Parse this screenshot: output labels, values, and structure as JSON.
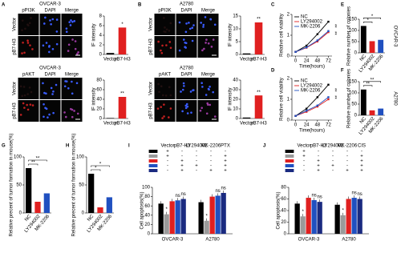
{
  "panel_letters": [
    "A",
    "B",
    "C",
    "D",
    "E",
    "F",
    "G",
    "H",
    "I",
    "J"
  ],
  "image_panels": [
    {
      "title": "OVCAR-3",
      "columns": [
        "pPI3K",
        "DAPI",
        "Merge"
      ],
      "rows": [
        "Vector",
        "pB7-H3"
      ]
    },
    {
      "title": "OVCAR-3",
      "columns": [
        "pAKT",
        "DAPI",
        "Merge"
      ],
      "rows": [
        "Vector",
        "pB7-H3"
      ]
    },
    {
      "title": "A2780",
      "columns": [
        "pPI3K",
        "DAPI",
        "Merge"
      ],
      "rows": [
        "Vector",
        "pB7-H3"
      ]
    },
    {
      "title": "A2780",
      "columns": [
        "pAKT",
        "DAPI",
        "Merge"
      ],
      "rows": [
        "Vector",
        "pB7-H3"
      ]
    }
  ],
  "chart_data": [
    {
      "type": "bar",
      "ylabel": "IF intensity",
      "categories": [
        "Vector",
        "pB7-H3"
      ],
      "values": [
        0.3,
        5.6
      ],
      "colors": [
        "#000000",
        "#e02020"
      ],
      "ylim": [
        0,
        8
      ],
      "yticks": [
        0,
        2,
        4,
        6,
        8
      ],
      "annotations": [
        "*"
      ]
    },
    {
      "type": "bar",
      "ylabel": "IF intensity",
      "categories": [
        "Vector",
        "pB7-H3"
      ],
      "values": [
        1,
        45
      ],
      "colors": [
        "#000000",
        "#e02020"
      ],
      "ylim": [
        0,
        80
      ],
      "yticks": [
        0,
        20,
        40,
        60,
        80
      ],
      "annotations": [
        "**"
      ]
    },
    {
      "type": "bar",
      "ylabel": "IF intensity",
      "categories": [
        "Vector",
        "pB7-H3"
      ],
      "values": [
        0.4,
        12.5
      ],
      "colors": [
        "#000000",
        "#e02020"
      ],
      "ylim": [
        0,
        15
      ],
      "yticks": [
        0,
        5,
        10,
        15
      ],
      "annotations": [
        "**"
      ]
    },
    {
      "type": "bar",
      "ylabel": "IF intensity",
      "categories": [
        "Vector",
        "pB7-H3"
      ],
      "values": [
        1,
        24
      ],
      "colors": [
        "#000000",
        "#e02020"
      ],
      "ylim": [
        0,
        40
      ],
      "yticks": [
        0,
        10,
        20,
        30,
        40
      ],
      "annotations": [
        "**"
      ]
    },
    {
      "type": "line",
      "ylabel": "Relative cell viability",
      "xlabel": "Time(hours)",
      "x": [
        0,
        24,
        48,
        72
      ],
      "xlim": [
        -8,
        80
      ],
      "xticks": [
        0,
        24,
        48,
        72
      ],
      "ylim": [
        0,
        2
      ],
      "yticks": [
        0,
        1,
        2
      ],
      "annotations": [
        "**",
        "**"
      ],
      "series": [
        {
          "name": "NC",
          "color": "#000000",
          "values": [
            0.2,
            0.5,
            1.05,
            1.65
          ]
        },
        {
          "name": "LY294002",
          "color": "#e02020",
          "values": [
            0.2,
            0.4,
            0.7,
            1.15
          ]
        },
        {
          "name": "MK-2206",
          "color": "#2050c0",
          "values": [
            0.2,
            0.42,
            0.75,
            1.2
          ]
        }
      ]
    },
    {
      "type": "line",
      "ylabel": "Relative cell viability",
      "xlabel": "Time(hours)",
      "x": [
        0,
        24,
        48,
        72
      ],
      "xlim": [
        -8,
        80
      ],
      "xticks": [
        0,
        24,
        48,
        72
      ],
      "ylim": [
        0,
        2
      ],
      "yticks": [
        0,
        1,
        2
      ],
      "annotations": [
        "**",
        "**"
      ],
      "series": [
        {
          "name": "NC",
          "color": "#000000",
          "values": [
            0.2,
            0.55,
            1.1,
            1.7
          ]
        },
        {
          "name": "LY294002",
          "color": "#e02020",
          "values": [
            0.2,
            0.4,
            0.65,
            1.0
          ]
        },
        {
          "name": "MK-2206",
          "color": "#2050c0",
          "values": [
            0.2,
            0.45,
            0.7,
            1.1
          ]
        }
      ]
    },
    {
      "type": "bar",
      "ylabel": "Relative number of colonies",
      "categories": [
        "NC",
        "LY294002",
        "MK-2206"
      ],
      "values": [
        120,
        52,
        58
      ],
      "colors": [
        "#000000",
        "#e02020",
        "#2050c0"
      ],
      "ylim": [
        0,
        150
      ],
      "yticks": [
        0,
        50,
        100,
        150
      ],
      "annotations": [
        "*",
        "*"
      ],
      "side_label": "OVCAR-3"
    },
    {
      "type": "bar",
      "ylabel": "Relative number of colonies",
      "categories": [
        "NC",
        "LY294002",
        "MK-2206"
      ],
      "values": [
        115,
        22,
        30
      ],
      "colors": [
        "#000000",
        "#e02020",
        "#2050c0"
      ],
      "ylim": [
        0,
        150
      ],
      "yticks": [
        0,
        50,
        100,
        150
      ],
      "annotations": [
        "**",
        "**"
      ],
      "side_label": "A2780"
    },
    {
      "type": "bar",
      "ylabel": "Relative precent of tumor formation in mouse(%)",
      "categories": [
        "NC",
        "LY294002",
        "MK-2206"
      ],
      "values": [
        80,
        20,
        35
      ],
      "colors": [
        "#000000",
        "#e02020",
        "#2050c0"
      ],
      "ylim": [
        0,
        100
      ],
      "yticks": [
        0,
        50,
        100
      ],
      "annotations": [
        "**",
        "**"
      ]
    },
    {
      "type": "bar",
      "ylabel": "Relative precent of tumor formation in mouse(%)",
      "categories": [
        "NC",
        "LY294002",
        "MK-2206"
      ],
      "values": [
        70,
        10,
        28
      ],
      "colors": [
        "#000000",
        "#e02020",
        "#2050c0"
      ],
      "ylim": [
        0,
        100
      ],
      "yticks": [
        0,
        50,
        100
      ],
      "annotations": [
        "*",
        "*"
      ]
    },
    {
      "type": "grouped_bar",
      "ylabel": "Cell apoptosis(%)",
      "categories": [
        "OVCAR-3",
        "A2780"
      ],
      "columns": [
        "Vector",
        "pB7-H3",
        "LY294002",
        "MK-2206",
        "PTX"
      ],
      "ylim": [
        0,
        100
      ],
      "yticks": [
        0,
        20,
        40,
        60,
        80,
        100
      ],
      "series": [
        {
          "color": "#000000",
          "conditions": [
            "+",
            "-",
            "-",
            "-",
            "-"
          ],
          "values": [
            65,
            68
          ]
        },
        {
          "color": "#9a9a9a",
          "conditions": [
            "+",
            "-",
            "-",
            "-",
            "+"
          ],
          "values": [
            42,
            28
          ],
          "notes": [
            "*",
            "*"
          ]
        },
        {
          "color": "#e02020",
          "conditions": [
            "-",
            "+",
            "-",
            "-",
            "+"
          ],
          "values": [
            70,
            80
          ]
        },
        {
          "color": "#2050c0",
          "conditions": [
            "-",
            "+",
            "+",
            "-",
            "+"
          ],
          "values": [
            72,
            82
          ],
          "notes": [
            "ns",
            "ns"
          ]
        },
        {
          "color": "#1a2a80",
          "conditions": [
            "-",
            "+",
            "-",
            "+",
            "+"
          ],
          "values": [
            75,
            88
          ],
          "notes": [
            "ns",
            "ns"
          ]
        }
      ]
    },
    {
      "type": "grouped_bar",
      "ylabel": "Cell apoptosis(%)",
      "categories": [
        "OVCAR-3",
        "A2780"
      ],
      "columns": [
        "Vector",
        "pB7-H3",
        "LY294002",
        "MK-2206",
        "CIS"
      ],
      "ylim": [
        0,
        80
      ],
      "yticks": [
        0,
        20,
        40,
        60,
        80
      ],
      "series": [
        {
          "color": "#000000",
          "conditions": [
            "+",
            "-",
            "-",
            "-",
            "-"
          ],
          "values": [
            52,
            50
          ]
        },
        {
          "color": "#9a9a9a",
          "conditions": [
            "+",
            "-",
            "-",
            "-",
            "+"
          ],
          "values": [
            30,
            32
          ],
          "notes": [
            "*",
            "*"
          ]
        },
        {
          "color": "#e02020",
          "conditions": [
            "-",
            "+",
            "-",
            "-",
            "+"
          ],
          "values": [
            62,
            60
          ]
        },
        {
          "color": "#2050c0",
          "conditions": [
            "-",
            "+",
            "+",
            "-",
            "+"
          ],
          "values": [
            58,
            62
          ],
          "notes": [
            "ns",
            "ns"
          ]
        },
        {
          "color": "#1a2a80",
          "conditions": [
            "-",
            "+",
            "-",
            "+",
            "+"
          ],
          "values": [
            55,
            60
          ],
          "notes": [
            "ns",
            "ns"
          ]
        }
      ]
    }
  ]
}
